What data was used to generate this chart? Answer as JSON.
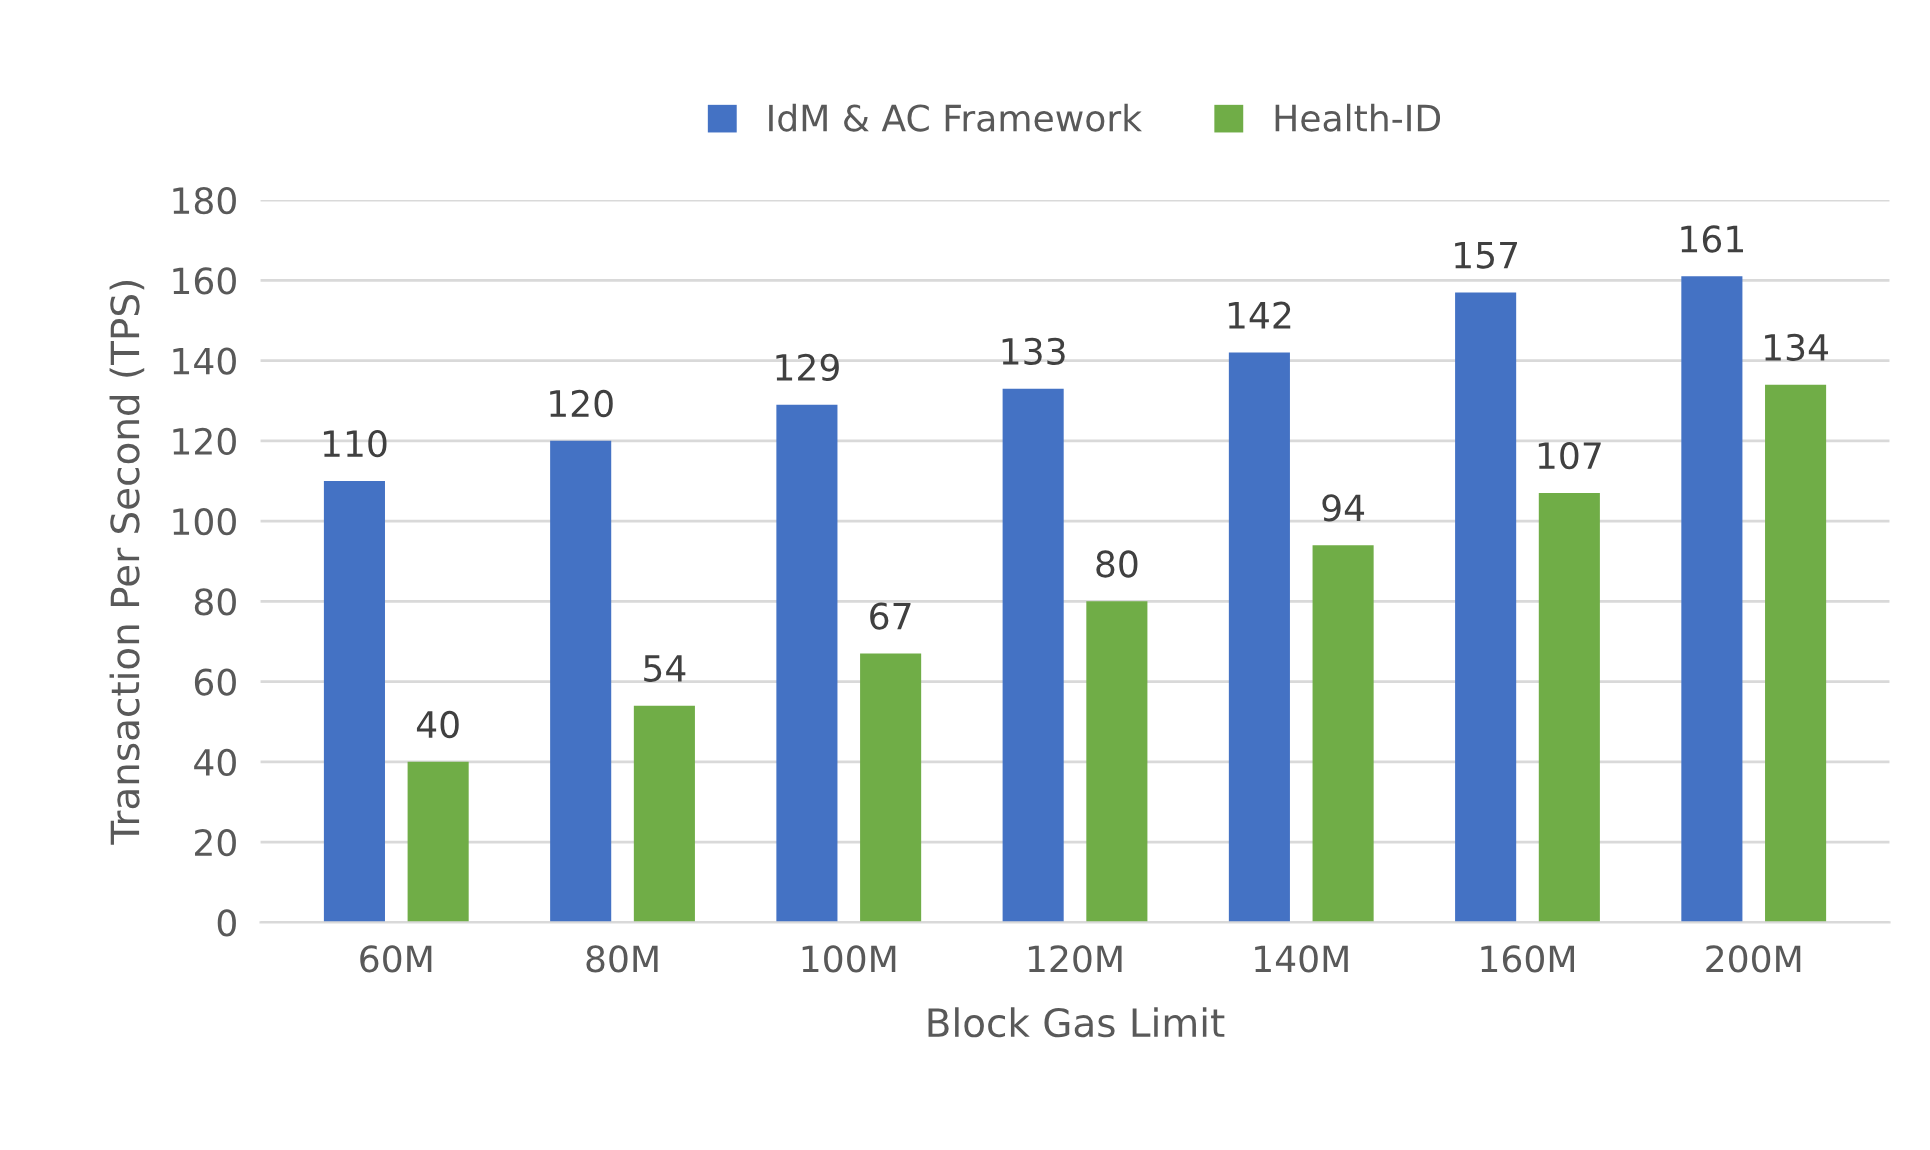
{
  "chart_data": {
    "type": "bar",
    "xlabel": "Block Gas Limit",
    "ylabel": "Transaction Per Second (TPS)",
    "categories": [
      "60M",
      "80M",
      "100M",
      "120M",
      "140M",
      "160M",
      "200M"
    ],
    "series": [
      {
        "name": "IdM & AC Framework",
        "color": "#4472c4",
        "values": [
          110,
          120,
          129,
          133,
          142,
          157,
          161
        ]
      },
      {
        "name": "Health-ID",
        "color": "#70ad47",
        "values": [
          40,
          54,
          67,
          80,
          94,
          107,
          134
        ]
      }
    ],
    "ylim": [
      0,
      180
    ],
    "yticks": [
      0,
      20,
      40,
      60,
      80,
      100,
      120,
      140,
      160,
      180
    ],
    "grid": "y",
    "legend": "top",
    "data_labels": true
  }
}
